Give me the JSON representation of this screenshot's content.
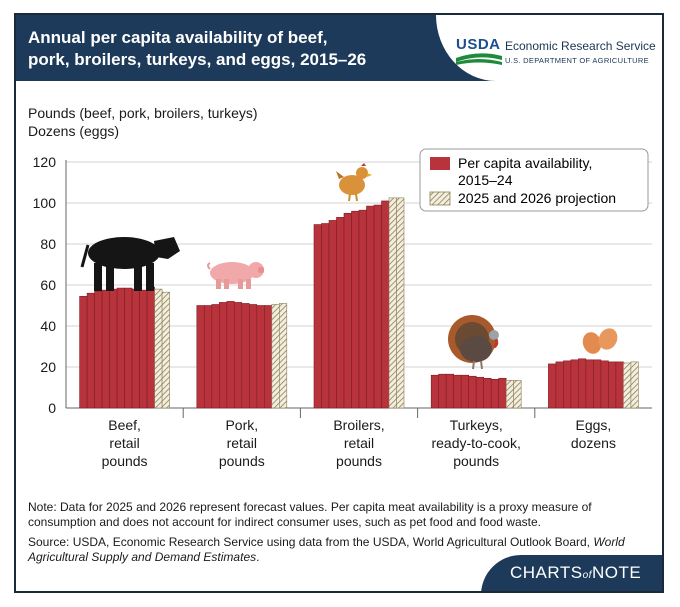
{
  "header": {
    "title_line1": "Annual per capita availability of beef,",
    "title_line2": "pork, broilers, turkeys, and eggs, 2015–26",
    "agency_logo_word": "USDA",
    "agency_name": "Economic Research Service",
    "agency_dept": "U.S. DEPARTMENT OF AGRICULTURE"
  },
  "footer": {
    "note": "Note: Data for 2025 and 2026 represent forecast values. Per capita meat availability is a proxy measure of consumption and does not account for indirect consumer uses, such as pet food and food waste.",
    "source_prefix": "Source: USDA, Economic Research Service using data from the USDA, World Agricultural Outlook Board, ",
    "source_italic": "World Agricultural Supply and Demand Estimates",
    "source_suffix": ".",
    "badge_charts": "CHARTS",
    "badge_of": "of",
    "badge_note": "NOTE"
  },
  "colors": {
    "bar": "#b8333b",
    "projection_stripe": "#c6b98f",
    "header": "#1d3a5a"
  },
  "chart_data": {
    "type": "bar",
    "ylabel_line1": "Pounds (beef, pork, broilers, turkeys)",
    "ylabel_line2": "Dozens (eggs)",
    "ylim": [
      0,
      120
    ],
    "yticks": [
      0,
      20,
      40,
      60,
      80,
      100,
      120
    ],
    "grid": true,
    "legend": {
      "position": "top-right",
      "entries": [
        {
          "label_line1": "Per capita availability,",
          "label_line2": "2015–24",
          "style": "solid"
        },
        {
          "label_line1": "2025 and 2026 projection",
          "label_line2": "",
          "style": "hatched"
        }
      ]
    },
    "groups": [
      {
        "label": [
          "Beef,",
          "retail",
          "pounds"
        ],
        "icon": "cow-icon",
        "values": [
          54.5,
          56.0,
          57.0,
          57.5,
          58.0,
          58.5,
          58.5,
          58.0,
          57.5,
          59.0
        ],
        "projection": [
          58.0,
          56.5
        ]
      },
      {
        "label": [
          "Pork,",
          "retail",
          "pounds"
        ],
        "icon": "pig-icon",
        "values": [
          50.0,
          50.0,
          50.5,
          51.5,
          52.0,
          51.5,
          51.0,
          50.5,
          50.0,
          50.0
        ],
        "projection": [
          50.5,
          51.0
        ]
      },
      {
        "label": [
          "Broilers,",
          "retail",
          "pounds"
        ],
        "icon": "chicken-icon",
        "values": [
          89.5,
          90.0,
          91.5,
          93.0,
          95.0,
          96.0,
          96.5,
          98.5,
          99.0,
          101.0
        ],
        "projection": [
          102.5,
          102.5
        ]
      },
      {
        "label": [
          "Turkeys,",
          "ready-to-cook,",
          "pounds"
        ],
        "icon": "turkey-icon",
        "values": [
          16.0,
          16.5,
          16.5,
          16.0,
          16.0,
          15.5,
          15.0,
          14.5,
          14.0,
          14.5
        ],
        "projection": [
          13.5,
          13.5
        ]
      },
      {
        "label": [
          "Eggs,",
          "dozens"
        ],
        "icon": "eggs-icon",
        "values": [
          21.5,
          22.5,
          23.0,
          23.5,
          24.0,
          23.5,
          23.5,
          23.0,
          22.5,
          22.5
        ],
        "projection": [
          22.0,
          22.5
        ]
      }
    ]
  }
}
